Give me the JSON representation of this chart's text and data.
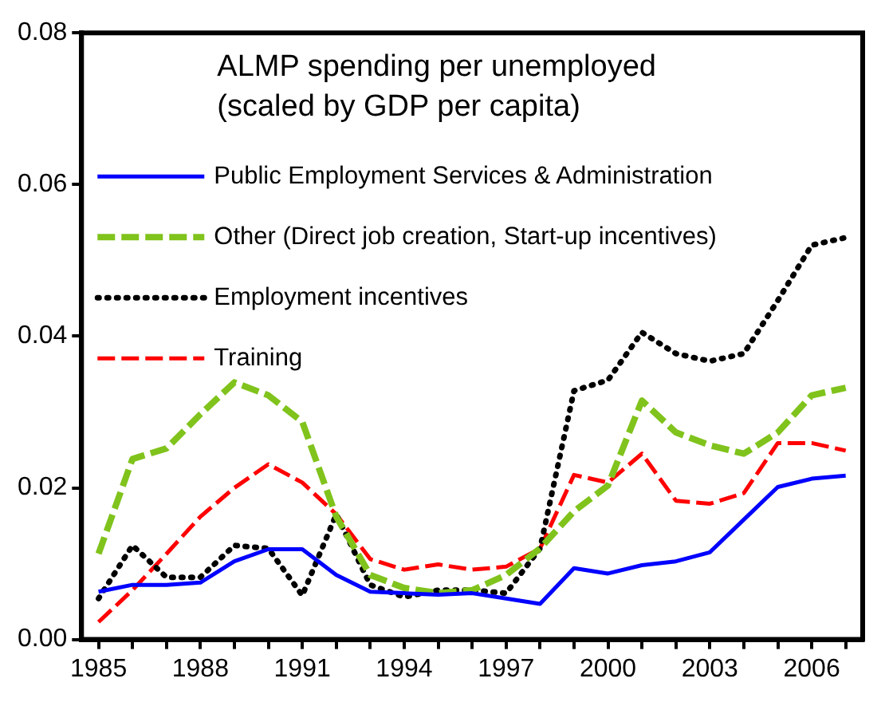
{
  "chart_data": {
    "type": "line",
    "title": "ALMP spending per unemployed",
    "subtitle": "(scaled by GDP per capita)",
    "categories": [
      "1985",
      null,
      null,
      "1988",
      null,
      null,
      "1991",
      null,
      null,
      "1994",
      null,
      null,
      "1997",
      null,
      null,
      "2000",
      null,
      null,
      "2003",
      null,
      null,
      "2006",
      null
    ],
    "series": [
      {
        "name": "Public Employment Services & Administration",
        "color": "#0000ff",
        "line_style": "solid",
        "values": [
          0.0063,
          0.0072,
          0.0072,
          0.0075,
          0.0103,
          0.0119,
          0.0119,
          0.0085,
          0.0063,
          0.0061,
          0.0059,
          0.0061,
          0.0054,
          0.0047,
          0.0094,
          0.0087,
          0.0098,
          0.0103,
          0.0115,
          0.0158,
          0.0201,
          0.0212,
          0.0216
        ]
      },
      {
        "name": "Other (Direct job creation, Start-up incentives)",
        "color": "#80c31c",
        "line_style": "dashed",
        "values": [
          0.0113,
          0.0238,
          0.0252,
          0.0297,
          0.0339,
          0.0322,
          0.0287,
          0.0162,
          0.0085,
          0.0068,
          0.0061,
          0.0065,
          0.0085,
          0.012,
          0.0169,
          0.0203,
          0.0315,
          0.0273,
          0.0256,
          0.0245,
          0.0273,
          0.0322,
          0.0332
        ]
      },
      {
        "name": "Employment incentives",
        "color": "#000000",
        "line_style": "dotted",
        "values": [
          0.0054,
          0.0124,
          0.0082,
          0.0082,
          0.0124,
          0.012,
          0.0058,
          0.0165,
          0.0072,
          0.0056,
          0.0065,
          0.0065,
          0.0061,
          0.012,
          0.0328,
          0.0342,
          0.0405,
          0.0377,
          0.0367,
          0.0377,
          0.0447,
          0.052,
          0.053
        ]
      },
      {
        "name": "Training",
        "color": "#ff0000",
        "line_style": "dashed",
        "values": [
          0.0023,
          0.0065,
          0.0113,
          0.0162,
          0.02,
          0.0231,
          0.0207,
          0.0165,
          0.0106,
          0.0092,
          0.0099,
          0.0092,
          0.0096,
          0.012,
          0.0217,
          0.0207,
          0.0245,
          0.0183,
          0.0179,
          0.0193,
          0.0259,
          0.0259,
          0.0249
        ]
      }
    ],
    "ylim": [
      0,
      0.08
    ],
    "yticks": [
      {
        "value": 0,
        "label": "0.00"
      },
      {
        "value": 0.02,
        "label": "0.02"
      },
      {
        "value": 0.04,
        "label": "0.04"
      },
      {
        "value": 0.06,
        "label": "0.06"
      },
      {
        "value": 0.08,
        "label": "0.08"
      }
    ],
    "grid": false,
    "legend": "top left",
    "marker": "none"
  }
}
